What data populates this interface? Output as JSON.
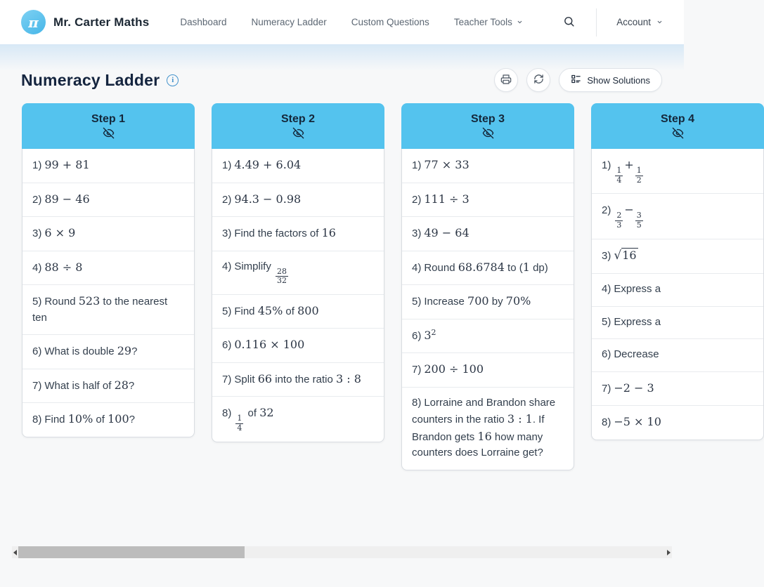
{
  "brand": {
    "name": "Mr. Carter Maths",
    "logo_glyph": "π"
  },
  "nav": {
    "items": [
      {
        "label": "Dashboard"
      },
      {
        "label": "Numeracy Ladder"
      },
      {
        "label": "Custom Questions"
      },
      {
        "label": "Teacher Tools",
        "has_dropdown": true
      }
    ],
    "account_label": "Account"
  },
  "page": {
    "title": "Numeracy Ladder",
    "show_solutions_label": "Show Solutions"
  },
  "icons": {
    "logo": "pi-glyph",
    "search": "search-icon (magnifying glass)",
    "print": "printer-icon",
    "refresh": "refresh-icon (two circular arrows)",
    "solutions": "checklist-icon",
    "step_hide": "eye-off-icon",
    "info": "info-icon"
  },
  "colors": {
    "accent_blue": "#54c3ee",
    "page_bg": "#f7f8f9",
    "title_navy": "#15253f",
    "card_border": "#d9dde2",
    "nav_text": "#5c6773",
    "scroll_thumb": "#bcbcbc",
    "hero_fade_top": "#d7e8f6"
  },
  "steps": [
    {
      "title": "Step 1",
      "questions": [
        {
          "num": "1)",
          "parts": [
            {
              "m": "99 + 81"
            }
          ]
        },
        {
          "num": "2)",
          "parts": [
            {
              "m": "89 − 46"
            }
          ]
        },
        {
          "num": "3)",
          "parts": [
            {
              "m": "6 × 9"
            }
          ]
        },
        {
          "num": "4)",
          "parts": [
            {
              "m": "88 ÷ 8"
            }
          ]
        },
        {
          "num": "5)",
          "parts": [
            {
              "t": "Round "
            },
            {
              "m": "523"
            },
            {
              "t": " to the nearest ten"
            }
          ]
        },
        {
          "num": "6)",
          "parts": [
            {
              "t": "What is double "
            },
            {
              "m": "29"
            },
            {
              "t": "?"
            }
          ]
        },
        {
          "num": "7)",
          "parts": [
            {
              "t": "What is half of "
            },
            {
              "m": "28"
            },
            {
              "t": "?"
            }
          ]
        },
        {
          "num": "8)",
          "parts": [
            {
              "t": "Find "
            },
            {
              "m": "10%"
            },
            {
              "t": " of "
            },
            {
              "m": "100"
            },
            {
              "t": "?"
            }
          ]
        }
      ]
    },
    {
      "title": "Step 2",
      "questions": [
        {
          "num": "1)",
          "parts": [
            {
              "m": "4.49 + 6.04"
            }
          ]
        },
        {
          "num": "2)",
          "parts": [
            {
              "m": "94.3 − 0.98"
            }
          ]
        },
        {
          "num": "3)",
          "parts": [
            {
              "t": "Find the factors of "
            },
            {
              "m": "16"
            }
          ]
        },
        {
          "num": "4)",
          "parts": [
            {
              "t": "Simplify "
            },
            {
              "frac": [
                "28",
                "32"
              ]
            }
          ]
        },
        {
          "num": "5)",
          "parts": [
            {
              "t": "Find "
            },
            {
              "m": "45%"
            },
            {
              "t": " of "
            },
            {
              "m": "800"
            }
          ]
        },
        {
          "num": "6)",
          "parts": [
            {
              "m": "0.116 × 100"
            }
          ]
        },
        {
          "num": "7)",
          "parts": [
            {
              "t": "Split "
            },
            {
              "m": "66"
            },
            {
              "t": " into the ratio "
            },
            {
              "m": "3 : 8"
            }
          ]
        },
        {
          "num": "8)",
          "parts": [
            {
              "frac": [
                "1",
                "4"
              ]
            },
            {
              "t": " of "
            },
            {
              "m": "32"
            }
          ]
        }
      ]
    },
    {
      "title": "Step 3",
      "questions": [
        {
          "num": "1)",
          "parts": [
            {
              "m": "77 × 33"
            }
          ]
        },
        {
          "num": "2)",
          "parts": [
            {
              "m": "111 ÷ 3"
            }
          ]
        },
        {
          "num": "3)",
          "parts": [
            {
              "m": "49 − 64"
            }
          ]
        },
        {
          "num": "4)",
          "parts": [
            {
              "t": "Round "
            },
            {
              "m": "68.6784"
            },
            {
              "t": " to ("
            },
            {
              "m": "1"
            },
            {
              "t": " dp)"
            }
          ]
        },
        {
          "num": "5)",
          "parts": [
            {
              "t": "Increase "
            },
            {
              "m": "700"
            },
            {
              "t": " by "
            },
            {
              "m": "70%"
            }
          ]
        },
        {
          "num": "6)",
          "parts": [
            {
              "base": "3",
              "sup": "2"
            }
          ]
        },
        {
          "num": "7)",
          "parts": [
            {
              "m": "200 ÷ 100"
            }
          ]
        },
        {
          "num": "8)",
          "parts": [
            {
              "t": "Lorraine and Brandon share counters in the ratio "
            },
            {
              "m": "3 : 1"
            },
            {
              "t": ". If Brandon gets "
            },
            {
              "m": "16"
            },
            {
              "t": " how many counters does Lorraine get?"
            }
          ]
        }
      ]
    },
    {
      "title": "Step 4",
      "questions": [
        {
          "num": "1)",
          "parts": [
            {
              "frac": [
                "1",
                "4"
              ]
            },
            {
              "m": "+"
            },
            {
              "frac": [
                "1",
                "2"
              ]
            }
          ]
        },
        {
          "num": "2)",
          "parts": [
            {
              "frac": [
                "2",
                "3"
              ]
            },
            {
              "m": "−"
            },
            {
              "frac": [
                "3",
                "5"
              ]
            }
          ]
        },
        {
          "num": "3)",
          "parts": [
            {
              "sqrt": "16"
            }
          ]
        },
        {
          "num": "4)",
          "parts": [
            {
              "t": "Express a"
            }
          ]
        },
        {
          "num": "5)",
          "parts": [
            {
              "t": "Express a"
            }
          ]
        },
        {
          "num": "6)",
          "parts": [
            {
              "t": "Decrease"
            }
          ]
        },
        {
          "num": "7)",
          "parts": [
            {
              "m": "−2 − 3"
            }
          ]
        },
        {
          "num": "8)",
          "parts": [
            {
              "m": "−5 × 10"
            }
          ]
        }
      ]
    }
  ]
}
